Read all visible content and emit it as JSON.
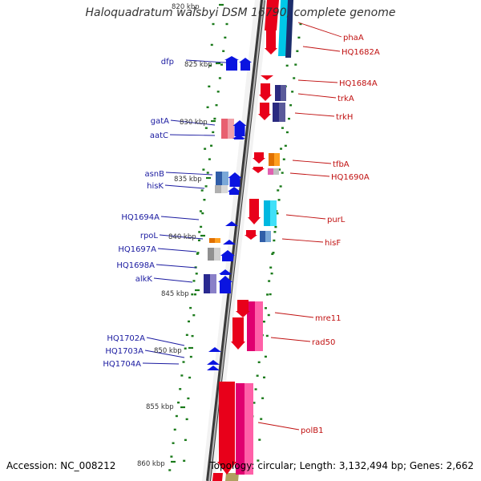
{
  "title": "Haloquadratum walsbyi DSM 16790, complete genome",
  "accession_label": "Accession: NC_008212",
  "topology_label": "Topology: circular; Length: 3,132,494 bp; Genes: 2,662",
  "colors": {
    "backbone": "#7a7a7a",
    "tick": "#1a7a1a",
    "left_label": "#1a1aa0",
    "right_label": "#c01010"
  },
  "ruler_labels": [
    "820 kbp",
    "825 kbp",
    "830 kbp",
    "835 kbp",
    "840 kbp",
    "845 kbp",
    "850 kbp",
    "855 kbp",
    "860 kbp"
  ],
  "genes_left": [
    "dfp",
    "gatA",
    "aatC",
    "asnB",
    "hisK",
    "HQ1694A",
    "rpoL",
    "HQ1697A",
    "HQ1698A",
    "alkK",
    "HQ1702A",
    "HQ1703A",
    "HQ1704A"
  ],
  "genes_right": [
    "phaA",
    "HQ1682A",
    "HQ1684A",
    "trkA",
    "trkH",
    "tfbA",
    "HQ1690A",
    "purL",
    "hisF",
    "mre11",
    "rad50",
    "polB1"
  ]
}
